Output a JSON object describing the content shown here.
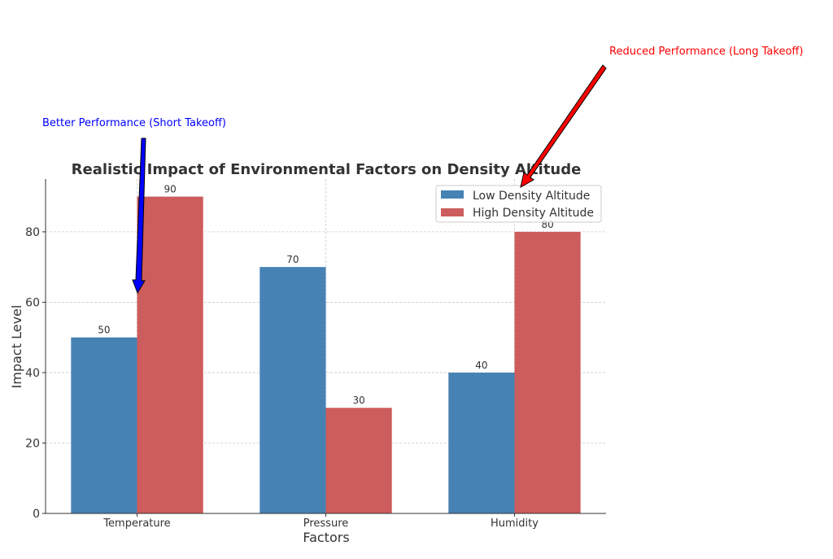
{
  "chart_data": {
    "type": "bar",
    "title": "Realistic Impact of Environmental Factors on Density Altitude",
    "xlabel": "Factors",
    "ylabel": "Impact Level",
    "categories": [
      "Temperature",
      "Pressure",
      "Humidity"
    ],
    "series": [
      {
        "name": "Low Density Altitude",
        "color": "#4682b4",
        "values": [
          50,
          70,
          40
        ]
      },
      {
        "name": "High Density Altitude",
        "color": "#cd5c5c",
        "values": [
          90,
          30,
          80
        ]
      }
    ],
    "ylim": [
      0,
      95
    ],
    "yticks": [
      0,
      20,
      40,
      60,
      80
    ],
    "grid": true,
    "legend_position": "top-right",
    "annotations": [
      {
        "text": "Better Performance (Short Takeoff)",
        "color": "#0000ff",
        "target_category": "Temperature",
        "target_value": 63
      },
      {
        "text": "Reduced Performance (Long Takeoff)",
        "color": "#ff0000",
        "target_category": "Humidity",
        "target_value": 93
      }
    ]
  }
}
